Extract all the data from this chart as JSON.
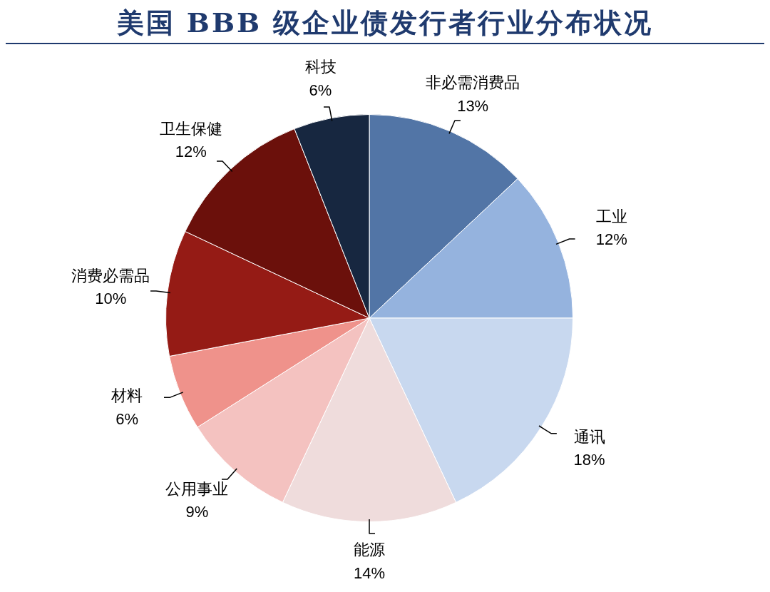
{
  "chart_data": {
    "type": "pie",
    "title": "美国 BBB 级企业债发行者行业分布状况",
    "categories": [
      "非必需消费品",
      "工业",
      "通讯",
      "能源",
      "公用事业",
      "材料",
      "消费必需品",
      "卫生保健",
      "科技"
    ],
    "values": [
      13,
      12,
      18,
      14,
      9,
      6,
      10,
      12,
      6
    ],
    "value_labels": [
      "13%",
      "12%",
      "18%",
      "14%",
      "9%",
      "6%",
      "10%",
      "12%",
      "6%"
    ],
    "colors": [
      "#5275a6",
      "#95b3de",
      "#c8d8ef",
      "#efdcdc",
      "#f4c2c0",
      "#ef928b",
      "#951b15",
      "#6b100b",
      "#172740"
    ],
    "legend": false
  }
}
